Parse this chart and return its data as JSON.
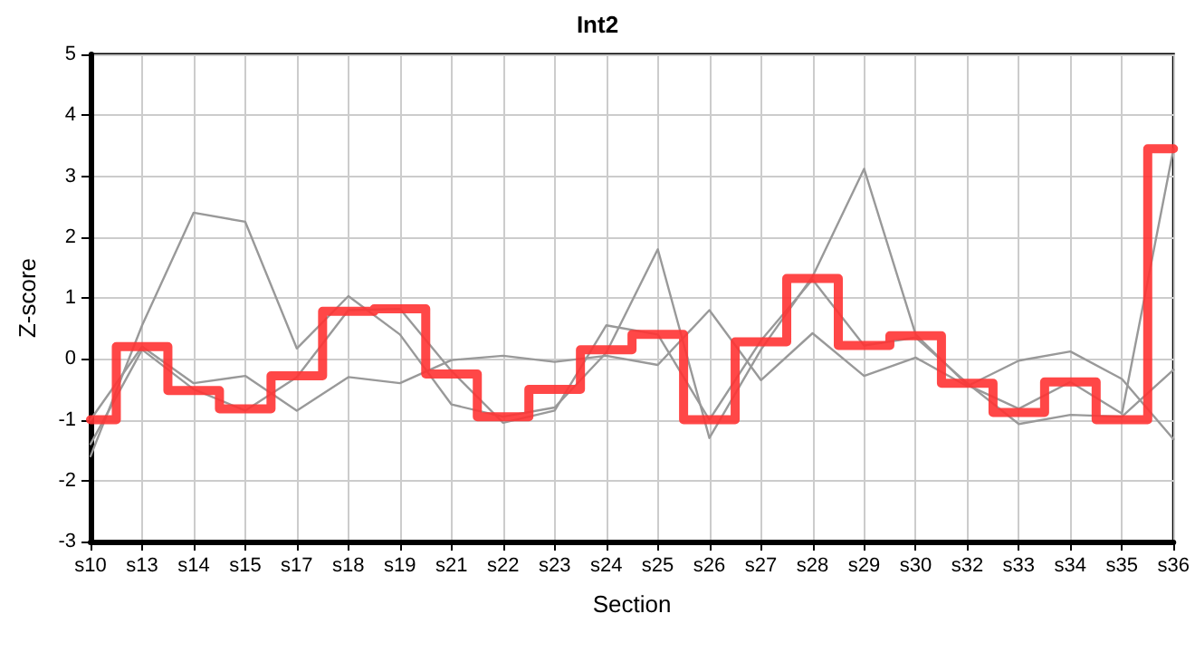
{
  "chart_data": {
    "type": "line",
    "title": "Int2",
    "xlabel": "Section",
    "ylabel": "Z-score",
    "categories": [
      "s10",
      "s13",
      "s14",
      "s15",
      "s17",
      "s18",
      "s19",
      "s21",
      "s22",
      "s23",
      "s24",
      "s25",
      "s26",
      "s27",
      "s28",
      "s29",
      "s30",
      "s32",
      "s33",
      "s34",
      "s35",
      "s36"
    ],
    "series": [
      {
        "color": "#999999",
        "values": [
          -1.6,
          0.55,
          2.4,
          2.25,
          0.17,
          1.03,
          0.4,
          -0.75,
          -0.95,
          -0.8,
          0.1,
          1.8,
          -1.3,
          0.15,
          1.35,
          3.12,
          0.4,
          -0.43,
          -0.82,
          -0.38,
          -0.9,
          3.45
        ]
      },
      {
        "color": "#999999",
        "values": [
          -1.0,
          0.2,
          -0.4,
          -0.28,
          -0.85,
          -0.3,
          -0.4,
          -0.02,
          0.05,
          -0.05,
          0.05,
          -0.1,
          0.8,
          -0.35,
          0.42,
          -0.28,
          0.02,
          -0.45,
          -0.03,
          0.12,
          -0.33,
          -1.32
        ]
      },
      {
        "color": "#999999",
        "values": [
          -1.4,
          0.15,
          -0.5,
          -0.85,
          -0.3,
          0.8,
          0.82,
          -0.2,
          -1.05,
          -0.85,
          0.55,
          0.4,
          -1.0,
          0.3,
          1.3,
          0.22,
          0.35,
          -0.4,
          -1.07,
          -0.92,
          -0.95,
          -0.18
        ]
      },
      {
        "type": "step",
        "color": "#ff3333",
        "values": [
          -1.0,
          0.2,
          -0.52,
          -0.82,
          -0.28,
          0.78,
          0.82,
          -0.25,
          -0.95,
          -0.5,
          0.15,
          0.4,
          -1.0,
          0.28,
          1.32,
          0.22,
          0.38,
          -0.4,
          -0.88,
          -0.38,
          -1.0,
          3.45
        ]
      }
    ],
    "ylim": [
      -3,
      5
    ],
    "yticks": [
      -3,
      -2,
      -1,
      0,
      1,
      2,
      3,
      4,
      5
    ],
    "grid": true,
    "marker": "none",
    "line_style": "solid"
  }
}
